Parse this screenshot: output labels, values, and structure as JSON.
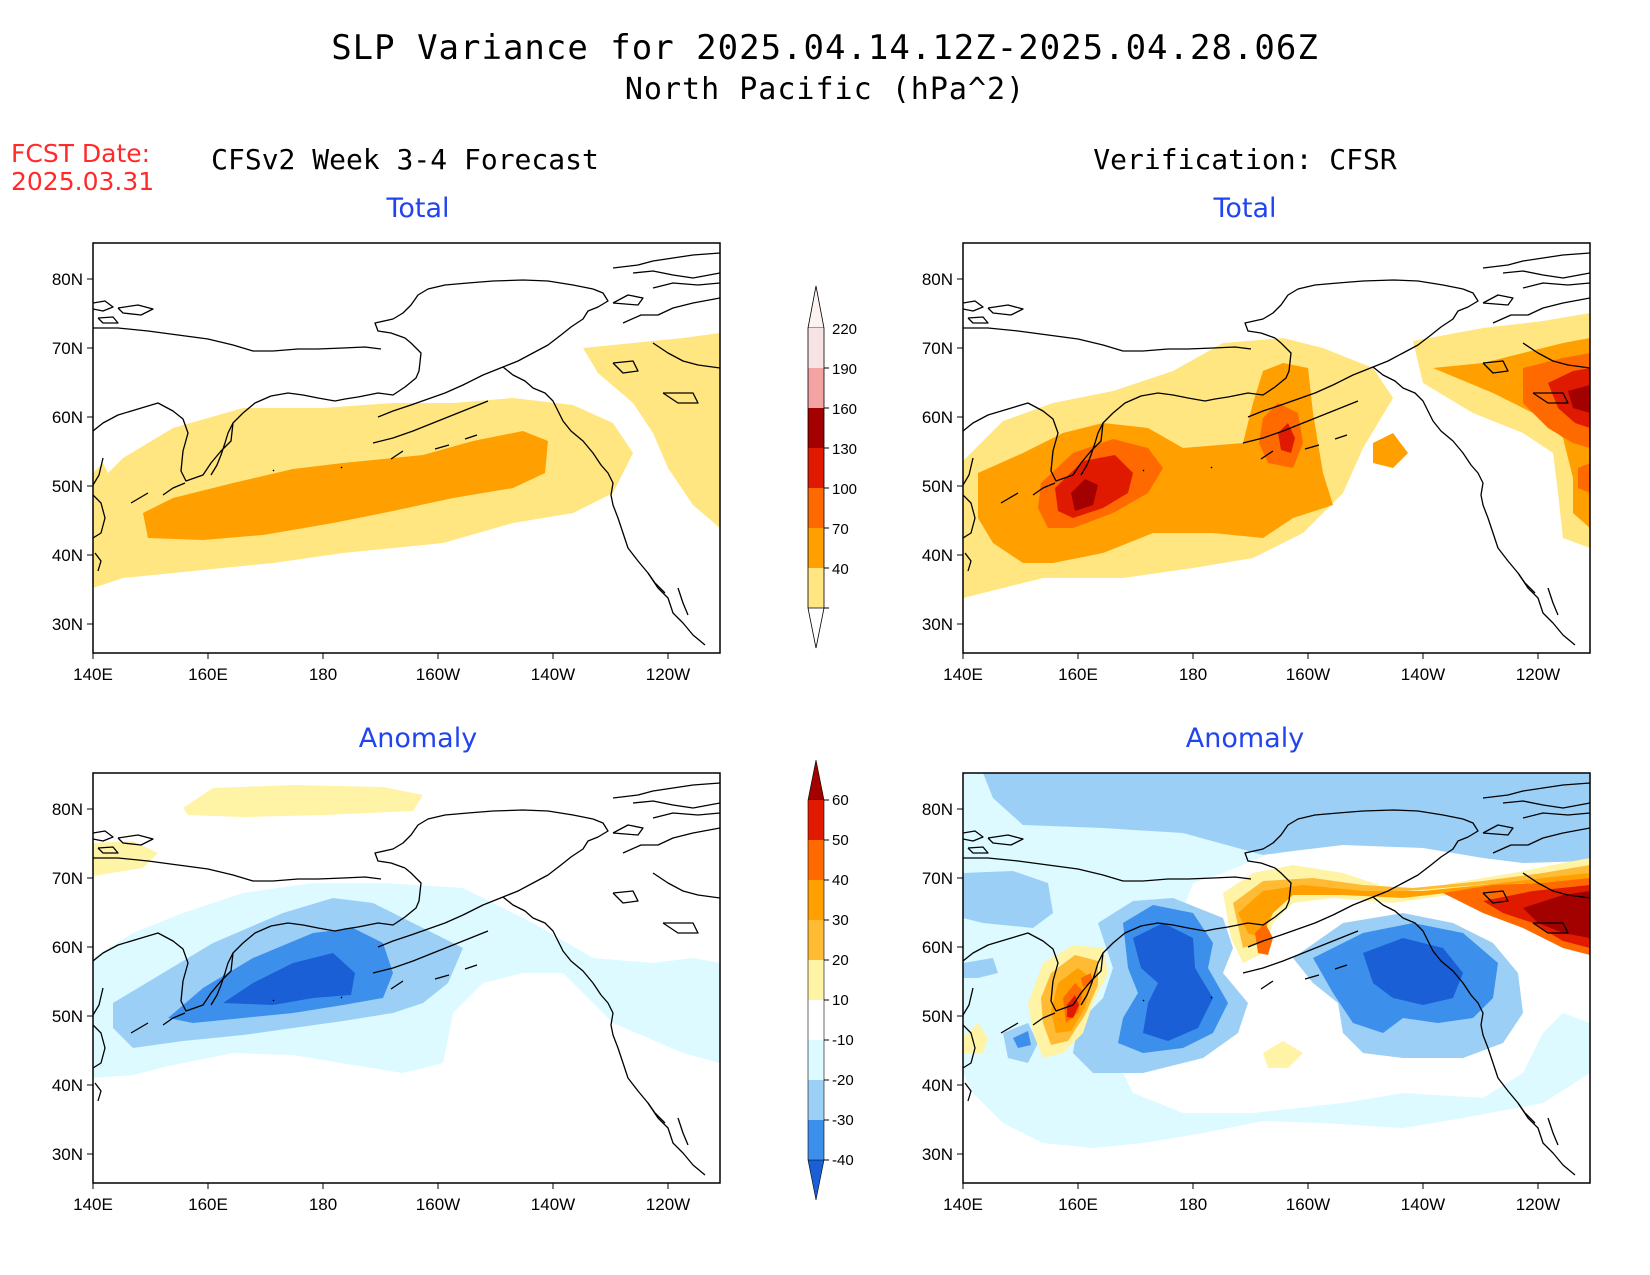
{
  "figure": {
    "title_line1": "SLP Variance for 2025.04.14.12Z-2025.04.28.06Z",
    "title_line2": "North Pacific (hPa^2)",
    "fcst_label": "FCST Date:",
    "fcst_date": "2025.03.31",
    "left_column_title": "CFSv2 Week 3-4 Forecast",
    "right_column_title": "Verification: CFSR"
  },
  "panels": {
    "forecast_total": {
      "title": "Total"
    },
    "verification_total": {
      "title": "Total"
    },
    "forecast_anomaly": {
      "title": "Anomaly"
    },
    "verification_anomaly": {
      "title": "Anomaly"
    }
  },
  "axes": {
    "lon_labels": [
      "140E",
      "160E",
      "180",
      "160W",
      "140W",
      "120W"
    ],
    "lat_labels": [
      "80N",
      "70N",
      "60N",
      "50N",
      "40N",
      "30N"
    ]
  },
  "colorbars": {
    "total": {
      "labels": [
        "220",
        "190",
        "160",
        "130",
        "100",
        "70",
        "40"
      ],
      "colors": [
        "#f6e4e4",
        "#f4a3a3",
        "#a30000",
        "#e01a00",
        "#ff6a00",
        "#ff9f00",
        "#ffe680"
      ]
    },
    "anomaly": {
      "labels": [
        "60",
        "50",
        "40",
        "30",
        "20",
        "10",
        "-10",
        "-20",
        "-30",
        "-40"
      ],
      "colors": [
        "#a30000",
        "#e01a00",
        "#ff6a00",
        "#ff9f00",
        "#ffbb33",
        "#fff3a6",
        "#ffffff",
        "#dcfaff",
        "#9ccff5",
        "#3c8fea",
        "#1a5fd6"
      ]
    }
  },
  "colors": {
    "title_accent": "#2244ee",
    "fcst_red": "#ff2a2a"
  }
}
